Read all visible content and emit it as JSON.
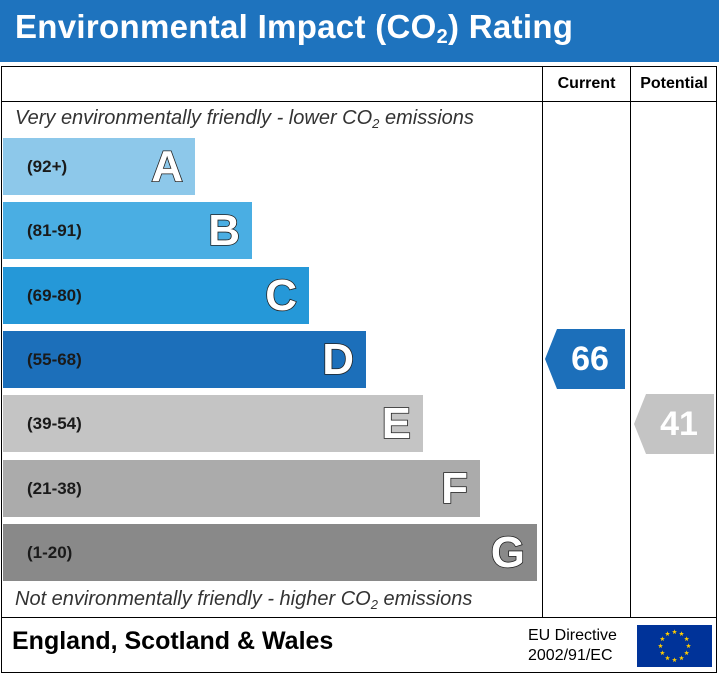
{
  "header": {
    "title_main": "Environmental Impact (CO",
    "title_sub": "2",
    "title_end": ") Rating"
  },
  "columns": {
    "current": "Current",
    "potential": "Potential"
  },
  "notes": {
    "top_main": "Very environmentally friendly - lower CO",
    "top_sub": "2",
    "top_end": " emissions",
    "bottom_main": "Not environmentally friendly - higher CO",
    "bottom_sub": "2",
    "bottom_end": " emissions"
  },
  "colors": {
    "header": "#1e73be",
    "A": "#8dc8ea",
    "B": "#4aaee3",
    "C": "#2598d8",
    "D": "#1c6fba",
    "E": "#c4c4c4",
    "F": "#ababab",
    "G": "#898989"
  },
  "chart_data": {
    "type": "bar",
    "bands": [
      {
        "letter": "A",
        "range": "(92+)"
      },
      {
        "letter": "B",
        "range": "(81-91)"
      },
      {
        "letter": "C",
        "range": "(69-80)"
      },
      {
        "letter": "D",
        "range": "(55-68)"
      },
      {
        "letter": "E",
        "range": "(39-54)"
      },
      {
        "letter": "F",
        "range": "(21-38)"
      },
      {
        "letter": "G",
        "range": "(1-20)"
      }
    ],
    "current": {
      "value": "66",
      "band": "D",
      "color": "#1c6fba"
    },
    "potential": {
      "value": "41",
      "band": "E",
      "color": "#c4c4c4"
    }
  },
  "footer": {
    "region": "England, Scotland & Wales",
    "directive_line1": "EU Directive",
    "directive_line2": "2002/91/EC",
    "flag_icon": "eu-flag-icon"
  }
}
